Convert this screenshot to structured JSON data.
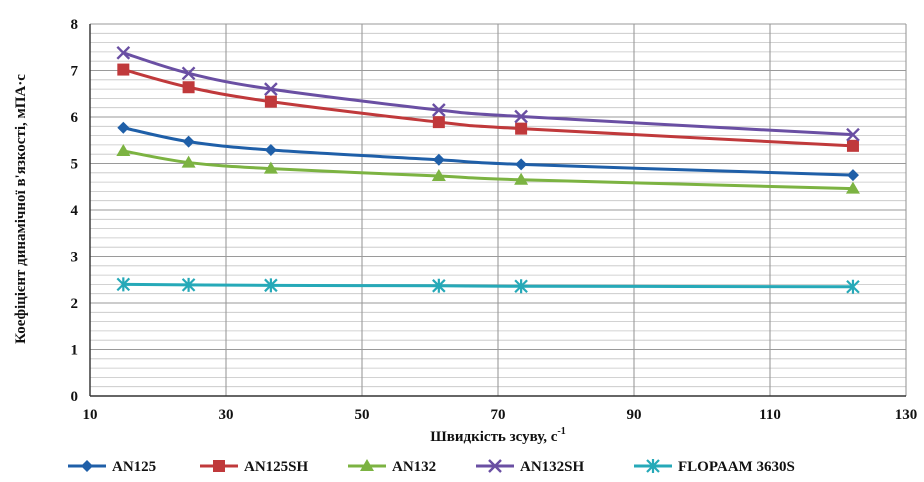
{
  "chart_data": {
    "type": "line",
    "xlabel": "Швидкість зсуву, с",
    "xlabel_superscript": "-1",
    "ylabel": "Коефіцієнт динамічної в'язкості, мПА·с",
    "xlim": [
      10,
      130
    ],
    "ylim": [
      0,
      8
    ],
    "x_ticks": [
      10,
      30,
      50,
      70,
      90,
      110,
      130
    ],
    "y_ticks": [
      0,
      1,
      2,
      3,
      4,
      5,
      6,
      7,
      8
    ],
    "grid": true,
    "legend_position": "bottom",
    "series": [
      {
        "name": "AN125",
        "color": "#1f5fa8",
        "marker": "diamond",
        "x": [
          14.9,
          24.5,
          36.6,
          61.3,
          73.4,
          122.2
        ],
        "y": [
          5.77,
          5.47,
          5.29,
          5.08,
          4.98,
          4.75
        ]
      },
      {
        "name": "AN125SH",
        "color": "#c0393b",
        "marker": "square",
        "x": [
          14.9,
          24.5,
          36.6,
          61.3,
          73.4,
          122.2
        ],
        "y": [
          7.02,
          6.64,
          6.33,
          5.89,
          5.75,
          5.38
        ]
      },
      {
        "name": "AN132",
        "color": "#7cb342",
        "marker": "triangle",
        "x": [
          14.9,
          24.5,
          36.6,
          61.3,
          73.4,
          122.2
        ],
        "y": [
          5.27,
          5.02,
          4.89,
          4.73,
          4.65,
          4.46
        ]
      },
      {
        "name": "AN132SH",
        "color": "#6a4fa3",
        "marker": "x",
        "x": [
          14.9,
          24.5,
          36.6,
          61.3,
          73.4,
          122.2
        ],
        "y": [
          7.38,
          6.94,
          6.6,
          6.15,
          6.01,
          5.62
        ]
      },
      {
        "name": "FLOPAAM 3630S",
        "color": "#26a9b8",
        "marker": "star",
        "x": [
          14.9,
          24.5,
          36.6,
          61.3,
          73.4,
          122.2
        ],
        "y": [
          2.4,
          2.39,
          2.38,
          2.37,
          2.36,
          2.35
        ]
      }
    ]
  }
}
